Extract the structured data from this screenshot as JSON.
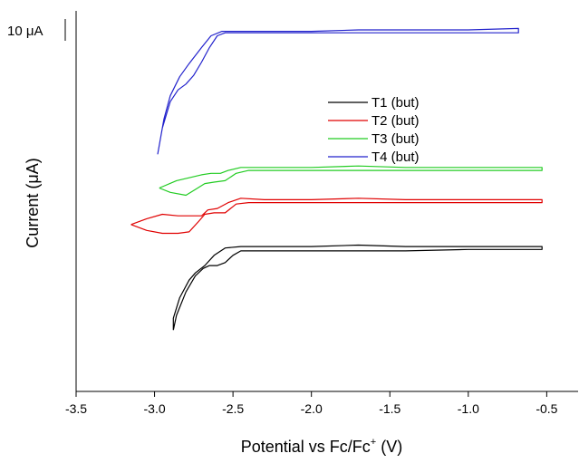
{
  "chart_data": {
    "type": "line",
    "xlabel": "Potential vs Fc/Fc",
    "xlabel_sup": "+",
    "xlabel_unit": " (V)",
    "ylabel": "Current (μA)",
    "scale_bar_label": "10 μA",
    "xlim": [
      -3.5,
      -0.3
    ],
    "x_ticks": [
      -3.5,
      -3.0,
      -2.5,
      -2.0,
      -1.5,
      -1.0,
      -0.5
    ],
    "x_tick_labels": [
      "-3.5",
      "-3.0",
      "-2.5",
      "-2.0",
      "-1.5",
      "-1.0",
      "-0.5"
    ],
    "y_ticks": false,
    "legend_position": "top-right",
    "series": [
      {
        "name": "T1 (but)",
        "color": "#000000",
        "points": [
          [
            -2.88,
            9.2
          ],
          [
            -2.86,
            10.2
          ],
          [
            -2.8,
            11.8
          ],
          [
            -2.74,
            12.9
          ],
          [
            -2.69,
            13.4
          ],
          [
            -2.65,
            13.6
          ],
          [
            -2.6,
            13.6
          ],
          [
            -2.55,
            13.8
          ],
          [
            -2.5,
            14.3
          ],
          [
            -2.45,
            14.6
          ],
          [
            -2.35,
            14.6
          ],
          [
            -2.2,
            14.6
          ],
          [
            -2.0,
            14.6
          ],
          [
            -1.7,
            14.6
          ],
          [
            -1.4,
            14.6
          ],
          [
            -1.0,
            14.7
          ],
          [
            -0.53,
            14.7
          ],
          [
            -0.53,
            14.9
          ],
          [
            -1.0,
            14.9
          ],
          [
            -1.4,
            14.9
          ],
          [
            -1.7,
            15.0
          ],
          [
            -2.0,
            14.9
          ],
          [
            -2.3,
            14.9
          ],
          [
            -2.45,
            14.9
          ],
          [
            -2.55,
            14.8
          ],
          [
            -2.62,
            14.3
          ],
          [
            -2.68,
            13.6
          ],
          [
            -2.74,
            13.1
          ],
          [
            -2.78,
            12.6
          ],
          [
            -2.84,
            11.4
          ],
          [
            -2.88,
            10.0
          ],
          [
            -2.88,
            9.2
          ]
        ]
      },
      {
        "name": "T2 (but)",
        "color": "#e00000",
        "points": [
          [
            -3.15,
            16.4
          ],
          [
            -3.05,
            16.0
          ],
          [
            -2.95,
            15.8
          ],
          [
            -2.85,
            15.8
          ],
          [
            -2.78,
            15.9
          ],
          [
            -2.72,
            16.6
          ],
          [
            -2.68,
            17.1
          ],
          [
            -2.62,
            17.2
          ],
          [
            -2.55,
            17.2
          ],
          [
            -2.48,
            17.8
          ],
          [
            -2.4,
            17.9
          ],
          [
            -2.2,
            17.9
          ],
          [
            -2.0,
            17.9
          ],
          [
            -1.7,
            17.9
          ],
          [
            -1.4,
            17.9
          ],
          [
            -1.0,
            17.9
          ],
          [
            -0.53,
            17.9
          ],
          [
            -0.53,
            18.1
          ],
          [
            -1.0,
            18.1
          ],
          [
            -1.4,
            18.1
          ],
          [
            -1.7,
            18.2
          ],
          [
            -2.0,
            18.1
          ],
          [
            -2.3,
            18.1
          ],
          [
            -2.45,
            18.2
          ],
          [
            -2.53,
            17.9
          ],
          [
            -2.6,
            17.5
          ],
          [
            -2.66,
            17.4
          ],
          [
            -2.7,
            17.0
          ],
          [
            -2.76,
            17.0
          ],
          [
            -2.85,
            17.0
          ],
          [
            -2.95,
            17.1
          ],
          [
            -3.05,
            16.8
          ],
          [
            -3.15,
            16.4
          ]
        ]
      },
      {
        "name": "T3 (but)",
        "color": "#22cc22",
        "points": [
          [
            -2.97,
            18.9
          ],
          [
            -2.9,
            18.6
          ],
          [
            -2.8,
            18.4
          ],
          [
            -2.74,
            18.8
          ],
          [
            -2.68,
            19.2
          ],
          [
            -2.62,
            19.3
          ],
          [
            -2.55,
            19.4
          ],
          [
            -2.48,
            19.9
          ],
          [
            -2.4,
            20.1
          ],
          [
            -2.2,
            20.1
          ],
          [
            -2.0,
            20.1
          ],
          [
            -1.7,
            20.1
          ],
          [
            -1.4,
            20.1
          ],
          [
            -1.0,
            20.1
          ],
          [
            -0.53,
            20.1
          ],
          [
            -0.53,
            20.3
          ],
          [
            -1.0,
            20.3
          ],
          [
            -1.4,
            20.3
          ],
          [
            -1.7,
            20.4
          ],
          [
            -2.0,
            20.3
          ],
          [
            -2.3,
            20.3
          ],
          [
            -2.45,
            20.3
          ],
          [
            -2.53,
            20.1
          ],
          [
            -2.58,
            19.9
          ],
          [
            -2.64,
            19.9
          ],
          [
            -2.7,
            19.8
          ],
          [
            -2.78,
            19.6
          ],
          [
            -2.86,
            19.4
          ],
          [
            -2.97,
            18.9
          ]
        ]
      },
      {
        "name": "T4 (but)",
        "color": "#2222cc",
        "points": [
          [
            -2.98,
            21.2
          ],
          [
            -2.95,
            23.0
          ],
          [
            -2.9,
            24.8
          ],
          [
            -2.85,
            25.6
          ],
          [
            -2.8,
            26.0
          ],
          [
            -2.75,
            26.6
          ],
          [
            -2.7,
            27.5
          ],
          [
            -2.65,
            28.5
          ],
          [
            -2.6,
            29.3
          ],
          [
            -2.55,
            29.5
          ],
          [
            -2.4,
            29.5
          ],
          [
            -2.2,
            29.5
          ],
          [
            -2.0,
            29.5
          ],
          [
            -1.7,
            29.5
          ],
          [
            -1.4,
            29.5
          ],
          [
            -1.0,
            29.5
          ],
          [
            -0.68,
            29.5
          ],
          [
            -0.68,
            29.8
          ],
          [
            -1.0,
            29.7
          ],
          [
            -1.4,
            29.7
          ],
          [
            -1.7,
            29.7
          ],
          [
            -2.0,
            29.6
          ],
          [
            -2.3,
            29.6
          ],
          [
            -2.5,
            29.6
          ],
          [
            -2.57,
            29.6
          ],
          [
            -2.64,
            29.3
          ],
          [
            -2.7,
            28.5
          ],
          [
            -2.78,
            27.4
          ],
          [
            -2.84,
            26.5
          ],
          [
            -2.9,
            25.2
          ],
          [
            -2.94,
            23.6
          ],
          [
            -2.98,
            21.2
          ]
        ]
      }
    ]
  }
}
